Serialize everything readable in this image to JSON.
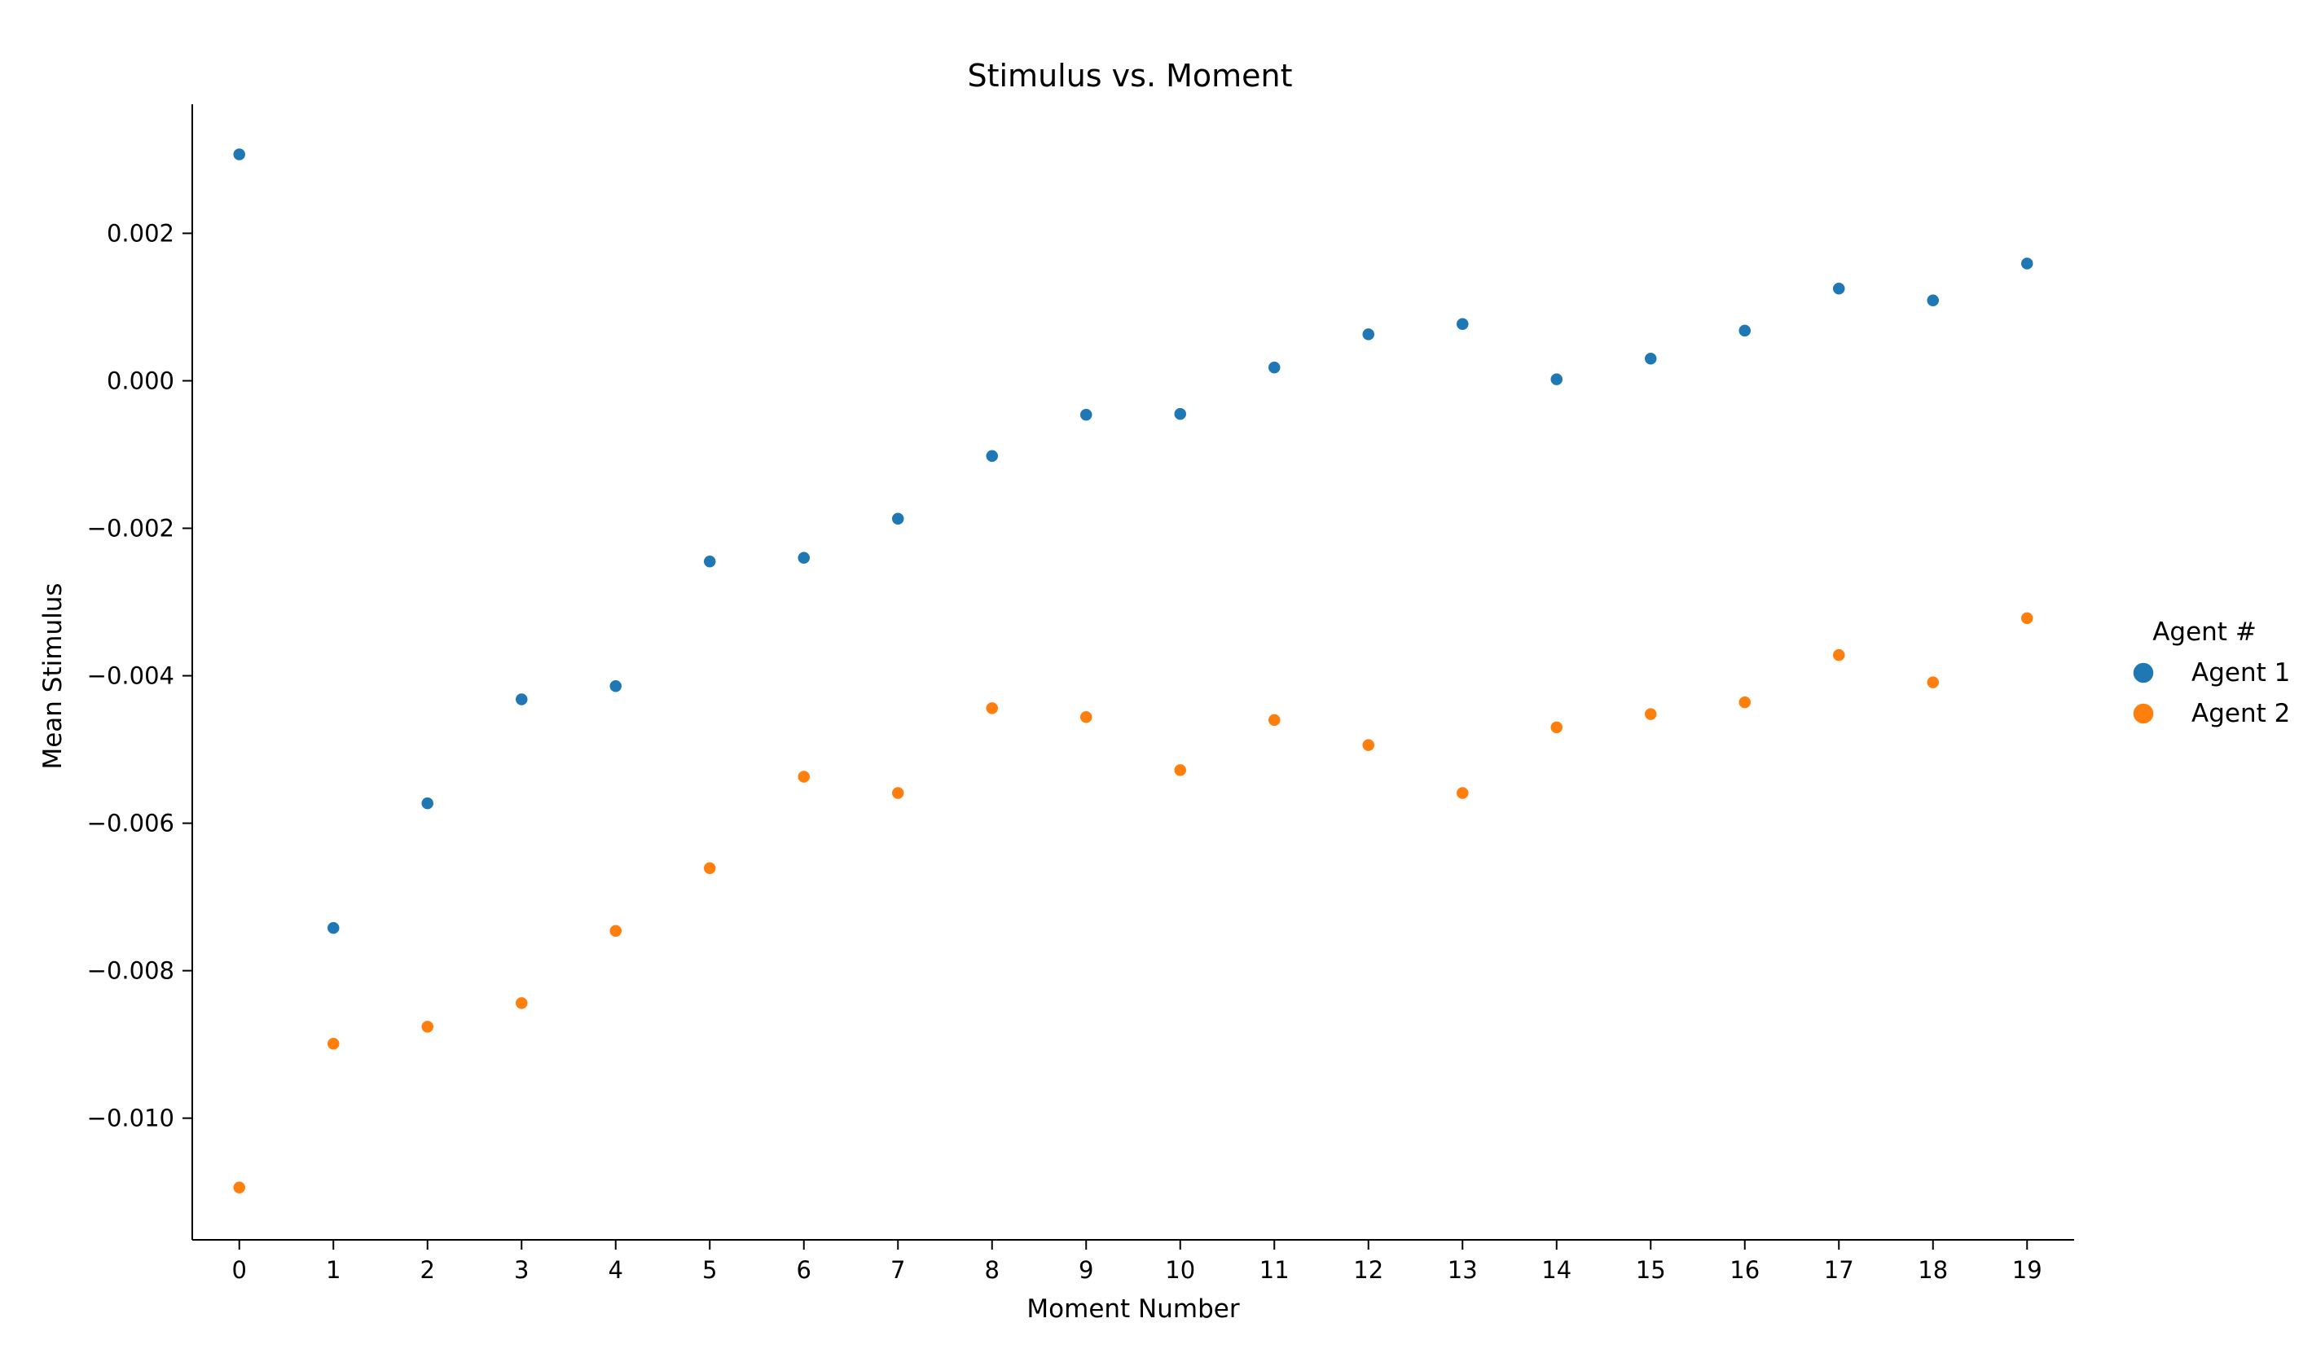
{
  "chart_data": {
    "type": "scatter",
    "title": "Stimulus vs. Moment",
    "xlabel": "Moment Number",
    "ylabel": "Mean Stimulus",
    "xlim": [
      -0.5,
      19.5
    ],
    "ylim": [
      -0.01165,
      0.00375
    ],
    "xticks": [
      0,
      1,
      2,
      3,
      4,
      5,
      6,
      7,
      8,
      9,
      10,
      11,
      12,
      13,
      14,
      15,
      16,
      17,
      18,
      19
    ],
    "xtick_labels": [
      "0",
      "1",
      "2",
      "3",
      "4",
      "5",
      "6",
      "7",
      "8",
      "9",
      "10",
      "11",
      "12",
      "13",
      "14",
      "15",
      "16",
      "17",
      "18",
      "19"
    ],
    "yticks": [
      0.002,
      0.0,
      -0.002,
      -0.004,
      -0.006,
      -0.008,
      -0.01
    ],
    "ytick_labels": [
      "0.002",
      "0.000",
      "−0.002",
      "−0.004",
      "−0.006",
      "−0.008",
      "−0.010"
    ],
    "grid": false,
    "legend": {
      "title": "Agent #",
      "placement": "right"
    },
    "x": [
      0,
      1,
      2,
      3,
      4,
      5,
      6,
      7,
      8,
      9,
      10,
      11,
      12,
      13,
      14,
      15,
      16,
      17,
      18,
      19
    ],
    "series": [
      {
        "name": "Agent 1",
        "color": "#1f77b4",
        "values": [
          0.00307,
          -0.00742,
          -0.00573,
          -0.00432,
          -0.00414,
          -0.00245,
          -0.0024,
          -0.00187,
          -0.00102,
          -0.00046,
          -0.00045,
          0.00018,
          0.00063,
          0.00077,
          2e-05,
          0.0003,
          0.00068,
          0.00125,
          0.00109,
          0.00159
        ]
      },
      {
        "name": "Agent 2",
        "color": "#ff7f0e",
        "values": [
          -0.01094,
          -0.00899,
          -0.00876,
          -0.00844,
          -0.00746,
          -0.00661,
          -0.00537,
          -0.00559,
          -0.00444,
          -0.00456,
          -0.00528,
          -0.0046,
          -0.00494,
          -0.00559,
          -0.0047,
          -0.00452,
          -0.00436,
          -0.00372,
          -0.00409,
          -0.00322
        ]
      }
    ]
  }
}
